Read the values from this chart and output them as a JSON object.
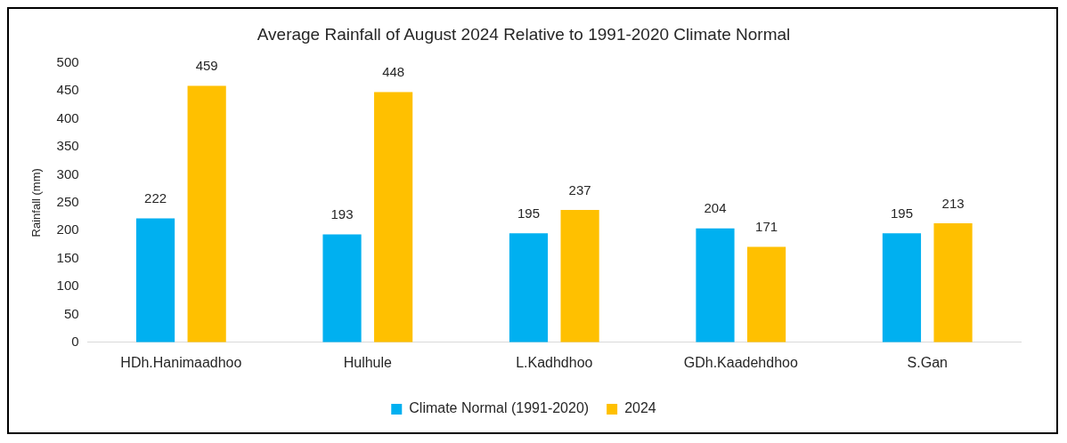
{
  "chart_data": {
    "type": "bar",
    "title": "Average Rainfall of August 2024 Relative to 1991-2020 Climate Normal",
    "ylabel": "Rainfall (mm)",
    "categories": [
      "HDh.Hanimaadhoo",
      "Hulhule",
      "L.Kadhdhoo",
      "GDh.Kaadehdhoo",
      "S.Gan"
    ],
    "series": [
      {
        "name": "Climate Normal (1991-2020)",
        "color": "#00b0f0",
        "values": [
          222,
          193,
          195,
          204,
          195
        ]
      },
      {
        "name": "2024",
        "color": "#ffc000",
        "values": [
          459,
          448,
          237,
          171,
          213
        ]
      }
    ],
    "ylim": [
      0,
      500
    ],
    "yticks": [
      0,
      50,
      100,
      150,
      200,
      250,
      300,
      350,
      400,
      450,
      500
    ],
    "grid": false,
    "legend": "bottom",
    "data_labels": true
  }
}
